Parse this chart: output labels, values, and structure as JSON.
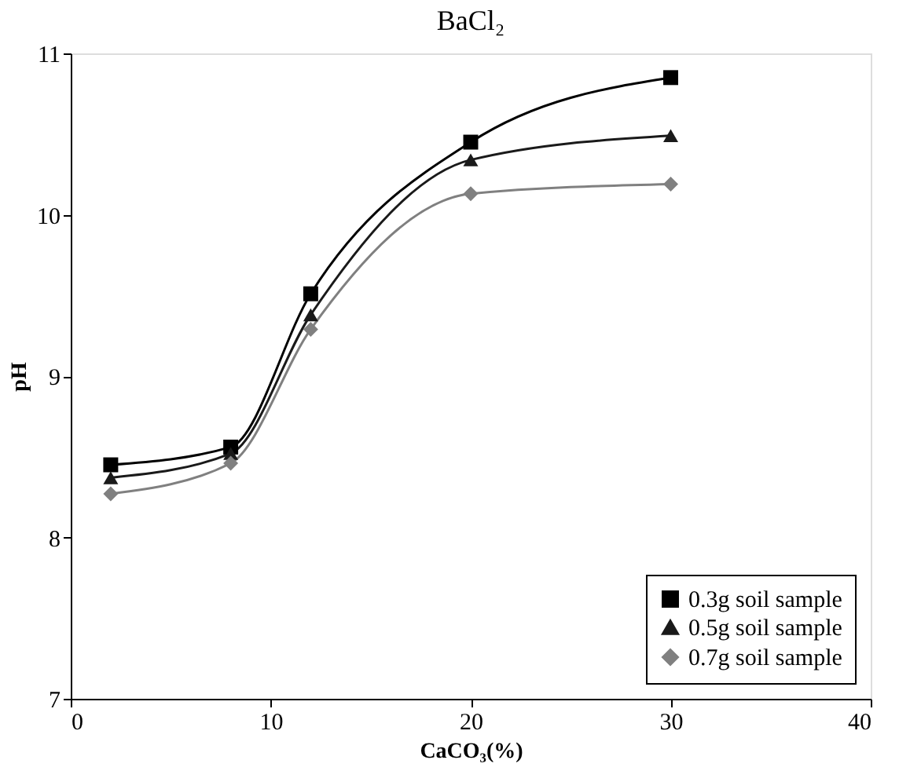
{
  "chart_data": {
    "type": "line",
    "title": "BaCl₂",
    "xlabel": "CaCO₃(%)",
    "ylabel": "pH",
    "x": [
      2,
      8,
      12,
      20,
      30
    ],
    "series": [
      {
        "name": "0.3g soil sample",
        "color": "#000000",
        "marker": "square",
        "values": [
          8.45,
          8.56,
          9.51,
          10.45,
          10.85
        ]
      },
      {
        "name": "0.5g soil sample",
        "color": "#1a1a1a",
        "marker": "triangle",
        "values": [
          8.37,
          8.52,
          9.38,
          10.34,
          10.49
        ]
      },
      {
        "name": "0.7g soil sample",
        "color": "#808080",
        "marker": "diamond",
        "values": [
          8.27,
          8.46,
          9.29,
          10.13,
          10.19
        ]
      }
    ],
    "xlim": [
      0,
      40
    ],
    "xticks": [
      0,
      10,
      20,
      30,
      40
    ],
    "ylim": [
      7,
      11
    ],
    "yticks": [
      7,
      8,
      9,
      10,
      11
    ],
    "grid": false,
    "legend": "bottom right",
    "line_style": "solid"
  }
}
